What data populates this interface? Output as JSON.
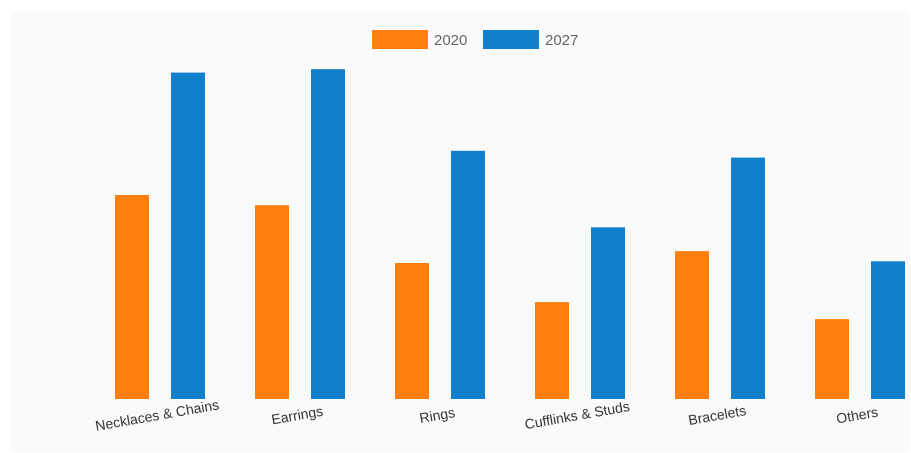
{
  "chart_data": {
    "type": "bar",
    "title": "",
    "xlabel": "",
    "ylabel": "",
    "categories": [
      "Necklaces & Chains",
      "Earrings",
      "Rings",
      "Cufflinks & Studs",
      "Bracelets",
      "Others"
    ],
    "series": [
      {
        "name": "2020",
        "color": "#ff7f0e",
        "values": [
          60,
          57,
          40,
          28.5,
          43.5,
          23.5
        ]
      },
      {
        "name": "2027",
        "color": "#1180cc",
        "values": [
          96,
          97,
          73,
          50.5,
          71,
          40.5
        ]
      }
    ],
    "ylim": [
      0,
      100
    ],
    "grid": false,
    "legend_position": "top-center",
    "x_tick_rotation_deg": -10
  }
}
